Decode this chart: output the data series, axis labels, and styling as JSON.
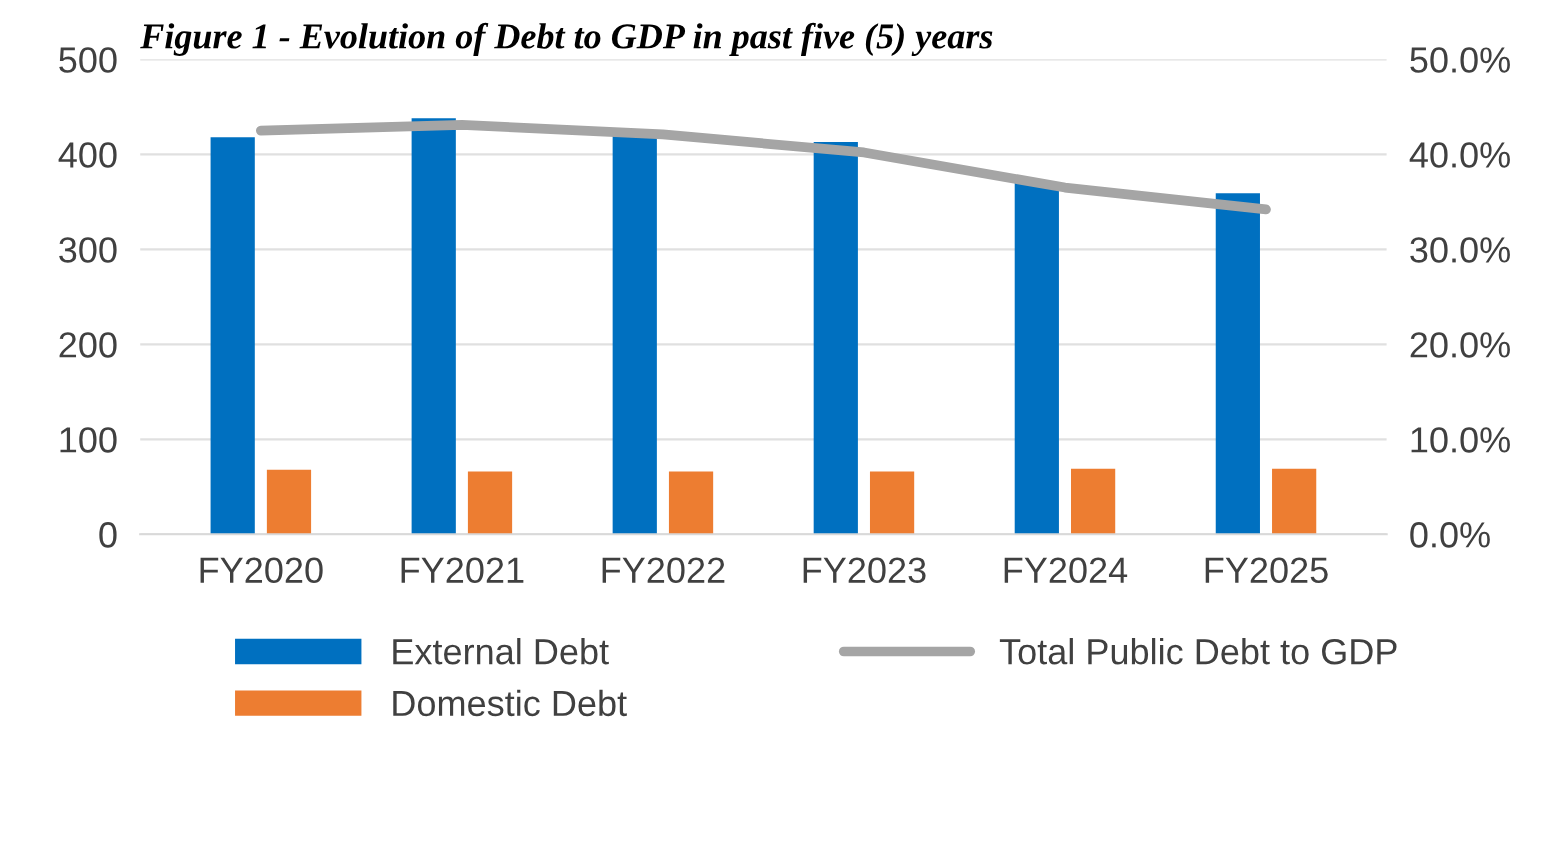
{
  "chart_data": {
    "type": "bar",
    "title": "Figure 1 - Evolution of Debt to GDP in past five (5) years",
    "categories": [
      "FY2020",
      "FY2021",
      "FY2022",
      "FY2023",
      "FY2024",
      "FY2025"
    ],
    "series": [
      {
        "name": "External Debt",
        "color": "#0070c0",
        "values": [
          418,
          438,
          421,
          413,
          370,
          359
        ]
      },
      {
        "name": "Domestic Debt",
        "color": "#ed7d31",
        "values": [
          68,
          66,
          66,
          66,
          69,
          69
        ]
      },
      {
        "name": "Total Public Debt to GDP",
        "color": "#a5a5a5",
        "type": "line",
        "axis": "y2",
        "values": [
          42.5,
          43.1,
          42.1,
          40.2,
          36.5,
          34.2
        ]
      }
    ],
    "ylim": [
      0,
      500
    ],
    "yticks": [
      0,
      100,
      200,
      300,
      400,
      500
    ],
    "y2lim": [
      0,
      50
    ],
    "y2ticks": [
      {
        "value": 0,
        "label": "0.0%"
      },
      {
        "value": 10,
        "label": "10.0%"
      },
      {
        "value": 20,
        "label": "20.0%"
      },
      {
        "value": 30,
        "label": "30.0%"
      },
      {
        "value": 40,
        "label": "40.0%"
      },
      {
        "value": 50,
        "label": "50.0%"
      }
    ],
    "grid": "y",
    "legend": "bottom",
    "marker": "none",
    "line_style": "solid"
  }
}
